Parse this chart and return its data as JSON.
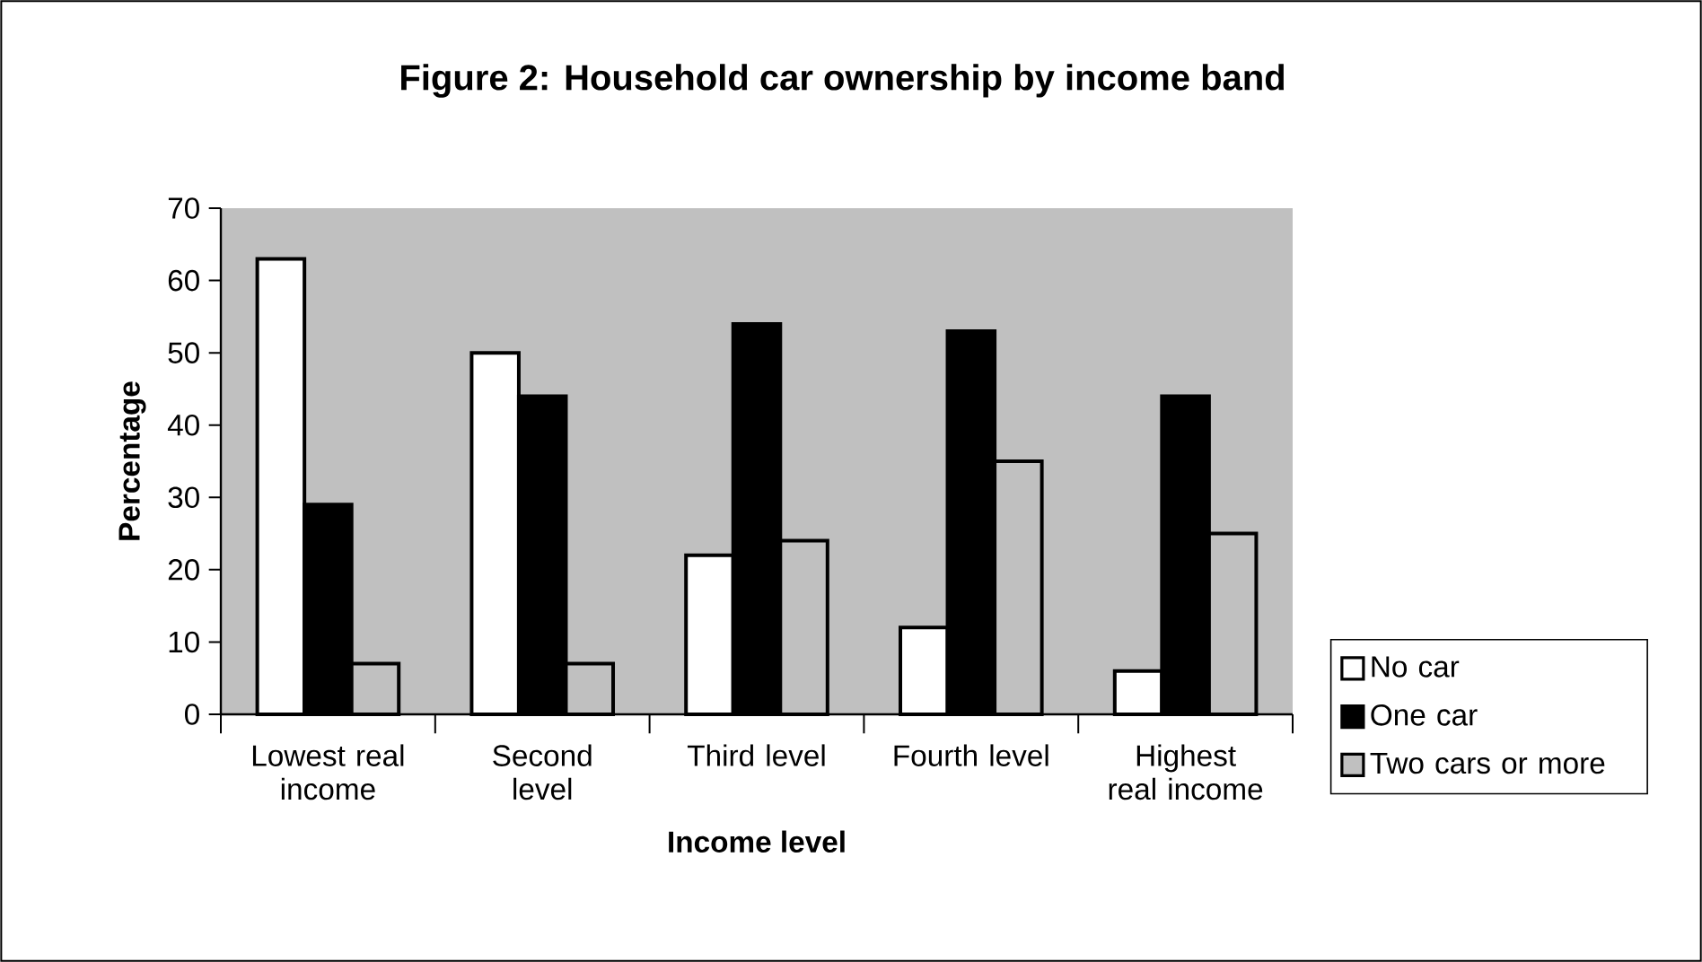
{
  "chart_data": {
    "type": "bar",
    "title": "Figure 2: Household car ownership by income band",
    "xlabel": "Income level",
    "ylabel": "Percentage",
    "categories": [
      "Lowest real income",
      "Second level",
      "Third level",
      "Fourth level",
      "Highest real income"
    ],
    "series": [
      {
        "name": "No car",
        "color": "#ffffff",
        "values": [
          63,
          50,
          22,
          12,
          6
        ]
      },
      {
        "name": "One car",
        "color": "#000000",
        "values": [
          29,
          44,
          54,
          53,
          44
        ]
      },
      {
        "name": "Two cars or more",
        "color": "#c0c0c0",
        "values": [
          7,
          7,
          24,
          35,
          25
        ]
      }
    ],
    "ylim": [
      0,
      70
    ],
    "yticks": [
      0,
      10,
      20,
      30,
      40,
      50,
      60,
      70
    ],
    "grid": false,
    "legend": "right"
  }
}
